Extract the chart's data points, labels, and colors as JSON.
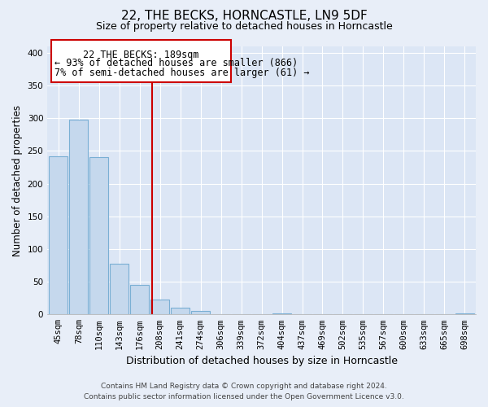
{
  "title": "22, THE BECKS, HORNCASTLE, LN9 5DF",
  "subtitle": "Size of property relative to detached houses in Horncastle",
  "xlabel": "Distribution of detached houses by size in Horncastle",
  "ylabel": "Number of detached properties",
  "bar_labels": [
    "45sqm",
    "78sqm",
    "110sqm",
    "143sqm",
    "176sqm",
    "208sqm",
    "241sqm",
    "274sqm",
    "306sqm",
    "339sqm",
    "372sqm",
    "404sqm",
    "437sqm",
    "469sqm",
    "502sqm",
    "535sqm",
    "567sqm",
    "600sqm",
    "633sqm",
    "665sqm",
    "698sqm"
  ],
  "bar_values": [
    242,
    298,
    240,
    77,
    45,
    23,
    10,
    5,
    0,
    0,
    0,
    2,
    0,
    0,
    0,
    0,
    0,
    0,
    0,
    0,
    2
  ],
  "bar_color": "#c5d8ed",
  "bar_edge_color": "#7aafd4",
  "vline_x_index": 4.62,
  "vline_color": "#cc0000",
  "annotation_title": "22 THE BECKS: 189sqm",
  "annotation_line1": "← 93% of detached houses are smaller (866)",
  "annotation_line2": "7% of semi-detached houses are larger (61) →",
  "annotation_box_facecolor": "#ffffff",
  "annotation_box_edgecolor": "#cc0000",
  "ylim": [
    0,
    410
  ],
  "yticks": [
    0,
    50,
    100,
    150,
    200,
    250,
    300,
    350,
    400
  ],
  "footer_line1": "Contains HM Land Registry data © Crown copyright and database right 2024.",
  "footer_line2": "Contains public sector information licensed under the Open Government Licence v3.0.",
  "bg_color": "#e8eef8",
  "plot_bg_color": "#dce6f5",
  "grid_color": "#ffffff",
  "title_fontsize": 11,
  "subtitle_fontsize": 9,
  "xlabel_fontsize": 9,
  "ylabel_fontsize": 8.5,
  "tick_fontsize": 7.5,
  "footer_fontsize": 6.5,
  "annotation_fontsize": 8.5
}
